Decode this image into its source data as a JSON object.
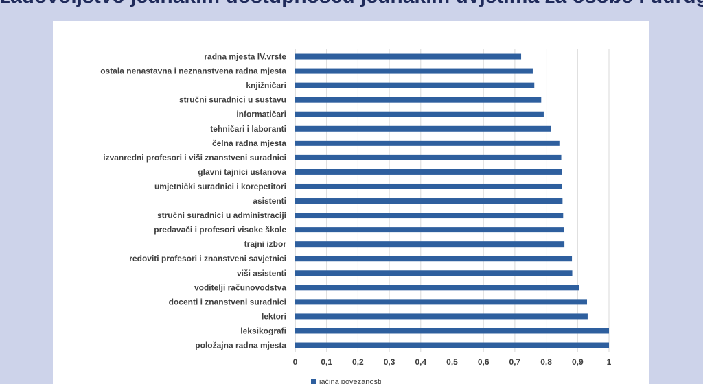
{
  "slide": {
    "title": "zadovoljstvo jednakim dostupnošću jednakim uvjetima za osobe i udruge"
  },
  "chart_data": {
    "type": "bar",
    "orientation": "horizontal",
    "title": "",
    "xlabel": "",
    "ylabel": "",
    "xlim": [
      0,
      1
    ],
    "x_ticks": [
      "0",
      "0,1",
      "0,2",
      "0,3",
      "0,4",
      "0,5",
      "0,6",
      "0,7",
      "0,8",
      "0,9",
      "1"
    ],
    "grid": "vertical",
    "bar_color": "#2e5f9e",
    "categories": [
      "radna mjesta IV.vrste",
      "ostala nenastavna i neznanstvena radna mjesta",
      "knjižničari",
      "stručni suradnici u sustavu",
      "informatičari",
      "tehničari i laboranti",
      "čelna radna mjesta",
      "izvanredni profesori i viši znanstveni suradnici",
      "glavni tajnici ustanova",
      "umjetnički suradnici i korepetitori",
      "asistenti",
      "stručni suradnici u administraciji",
      "predavači i profesori visoke škole",
      "trajni izbor",
      "redoviti profesori i znanstveni savjetnici",
      "viši asistenti",
      "voditelji računovodstva",
      "docenti i znanstveni suradnici",
      "lektori",
      "leksikografi",
      "položajna radna mjesta"
    ],
    "series": [
      {
        "name": "jačina povezanosti",
        "values": [
          0.72,
          0.757,
          0.762,
          0.784,
          0.792,
          0.814,
          0.842,
          0.848,
          0.85,
          0.85,
          0.852,
          0.854,
          0.856,
          0.858,
          0.882,
          0.883,
          0.905,
          0.93,
          0.932,
          1.0,
          1.0
        ]
      }
    ],
    "legend": "bottom"
  }
}
